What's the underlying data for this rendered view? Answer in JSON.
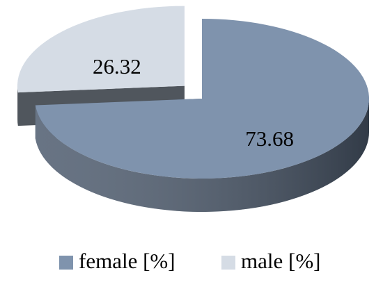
{
  "chart_data": {
    "type": "pie",
    "categories": [
      "female [%]",
      "male [%]"
    ],
    "values": [
      73.68,
      26.32
    ],
    "colors": [
      "#7f93ad",
      "#d5dce5"
    ],
    "wall_colors": [
      "#4d5b6e",
      "#50565d"
    ],
    "exploded": [
      false,
      true
    ],
    "legend": "bottom"
  }
}
